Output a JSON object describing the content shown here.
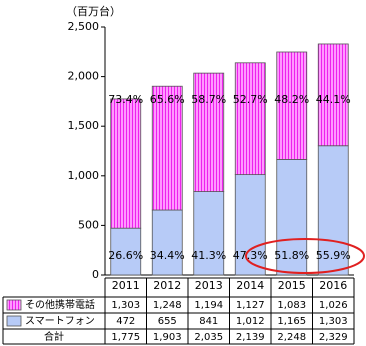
{
  "chart_data": {
    "type": "stacked-bar",
    "y_unit": "（百万台）",
    "categories": [
      "2011",
      "2012",
      "2013",
      "2014",
      "2015",
      "2016"
    ],
    "series": [
      {
        "name": "その他携帯電話",
        "color": "#ff99ff",
        "stripe": "#ee22ee",
        "values": [
          1303,
          1248,
          1194,
          1127,
          1083,
          1026
        ],
        "value_labels": [
          "1,303",
          "1,248",
          "1,194",
          "1,127",
          "1,083",
          "1,026"
        ],
        "shares": [
          "73.4%",
          "65.6%",
          "58.7%",
          "52.7%",
          "48.2%",
          "44.1%"
        ]
      },
      {
        "name": "スマートフォン",
        "color": "#b7cbf7",
        "values": [
          472,
          655,
          841,
          1012,
          1165,
          1303
        ],
        "value_labels": [
          "472",
          "655",
          "841",
          "1,012",
          "1,165",
          "1,303"
        ],
        "shares": [
          "26.6%",
          "34.4%",
          "41.3%",
          "47.3%",
          "51.8%",
          "55.9%"
        ]
      }
    ],
    "total_name": "合計",
    "totals": [
      "1,775",
      "1,903",
      "2,035",
      "2,139",
      "2,248",
      "2,329"
    ],
    "ylim": [
      0,
      2500
    ],
    "yticks": [
      0,
      500,
      {
        "value": 1000,
        "label": "1,000"
      },
      {
        "value": 1500,
        "label": "1,500"
      },
      {
        "value": 2000,
        "label": "2,000"
      },
      {
        "value": 2500,
        "label": "2,500"
      }
    ],
    "grid": false
  }
}
